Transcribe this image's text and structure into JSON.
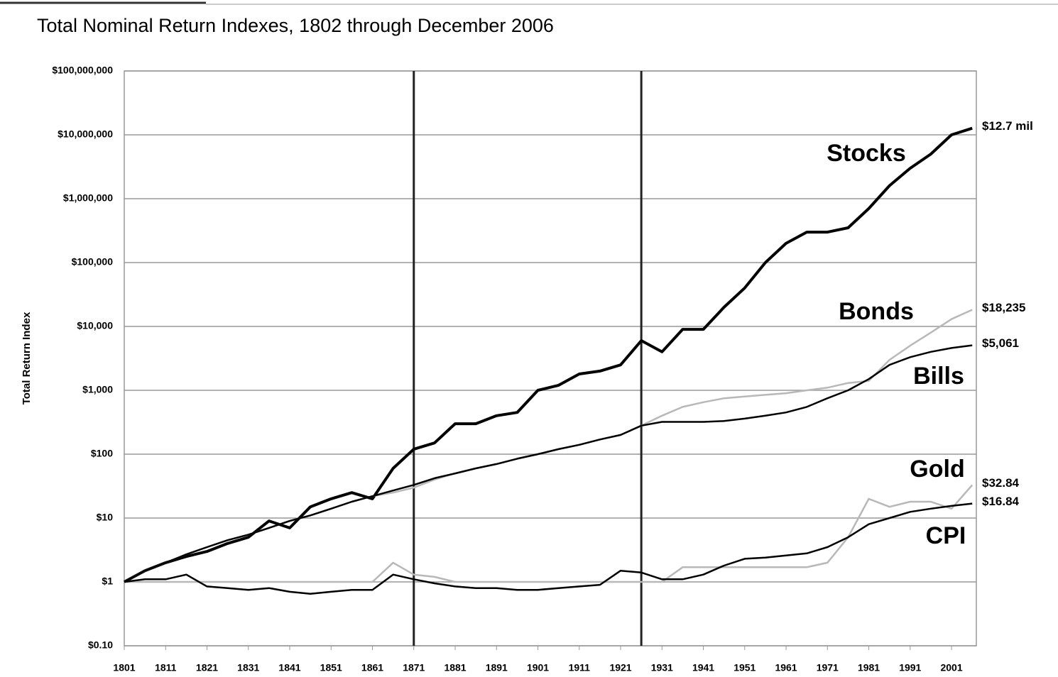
{
  "chart_data": {
    "type": "line",
    "title": "Total Nominal Return Indexes, 1802 through December 2006",
    "ylabel": "Total Return Index",
    "log_y": true,
    "grid": true,
    "xlim": [
      1801,
      2007
    ],
    "ylim": [
      0.1,
      100000000
    ],
    "xticks": [
      1801,
      1811,
      1821,
      1831,
      1841,
      1851,
      1861,
      1871,
      1881,
      1891,
      1901,
      1911,
      1921,
      1931,
      1941,
      1951,
      1961,
      1971,
      1981,
      1991,
      2001
    ],
    "yticks": [
      {
        "value": 0.1,
        "label": "$0.10"
      },
      {
        "value": 1,
        "label": "$1"
      },
      {
        "value": 10,
        "label": "$10"
      },
      {
        "value": 100,
        "label": "$100"
      },
      {
        "value": 1000,
        "label": "$1,000"
      },
      {
        "value": 10000,
        "label": "$10,000"
      },
      {
        "value": 100000,
        "label": "$100,000"
      },
      {
        "value": 1000000,
        "label": "$1,000,000"
      },
      {
        "value": 10000000,
        "label": "$10,000,000"
      },
      {
        "value": 100000000,
        "label": "$100,000,000"
      }
    ],
    "vertical_lines": [
      1871,
      1926
    ],
    "x": [
      1801,
      1806,
      1811,
      1816,
      1821,
      1826,
      1831,
      1836,
      1841,
      1846,
      1851,
      1856,
      1861,
      1866,
      1871,
      1876,
      1881,
      1886,
      1891,
      1896,
      1901,
      1906,
      1911,
      1916,
      1921,
      1926,
      1931,
      1936,
      1941,
      1946,
      1951,
      1956,
      1961,
      1966,
      1971,
      1976,
      1981,
      1986,
      1991,
      1996,
      2001,
      2006
    ],
    "series": [
      {
        "name": "Stocks",
        "color": "#000000",
        "line_width": 4,
        "values": [
          1,
          1.5,
          2,
          2.5,
          3,
          4,
          5,
          9,
          7,
          15,
          20,
          25,
          20,
          60,
          120,
          150,
          300,
          300,
          400,
          450,
          1000,
          1200,
          1800,
          2000,
          2500,
          6000,
          4000,
          9000,
          9000,
          20000,
          40000,
          100000,
          200000,
          300000,
          300000,
          350000,
          700000,
          1600000,
          3000000,
          5000000,
          10000000,
          12700000
        ],
        "value_labels": [
          null,
          null,
          null,
          null,
          null,
          null,
          null,
          null,
          null,
          null,
          null,
          null,
          null,
          null,
          null,
          null,
          null,
          null,
          null,
          null,
          null,
          null,
          null,
          null,
          null,
          null,
          null,
          null,
          null,
          null,
          null,
          null,
          null,
          null,
          null,
          null,
          null,
          null,
          null,
          null,
          null,
          "$12.7 mil"
        ]
      },
      {
        "name": "Bonds",
        "color": "#b8b8b8",
        "line_width": 2.5,
        "values": [
          1,
          1.5,
          2,
          2.7,
          3.5,
          4.5,
          5.5,
          7,
          9,
          11,
          14,
          18,
          22,
          25,
          30,
          40,
          50,
          60,
          70,
          85,
          100,
          120,
          140,
          170,
          200,
          280,
          400,
          550,
          650,
          750,
          800,
          850,
          900,
          1000,
          1100,
          1300,
          1400,
          3000,
          5000,
          8000,
          13000,
          18235
        ],
        "value_labels": [
          null,
          null,
          null,
          null,
          null,
          null,
          null,
          null,
          null,
          null,
          null,
          null,
          null,
          null,
          null,
          null,
          null,
          null,
          null,
          null,
          null,
          null,
          null,
          null,
          null,
          null,
          null,
          null,
          null,
          null,
          null,
          null,
          null,
          null,
          null,
          null,
          null,
          null,
          null,
          null,
          null,
          "$18,235"
        ]
      },
      {
        "name": "Bills",
        "color": "#000000",
        "line_width": 2.5,
        "values": [
          1,
          1.5,
          2,
          2.7,
          3.5,
          4.5,
          5.5,
          7,
          9,
          11,
          14,
          18,
          22,
          27,
          33,
          42,
          50,
          60,
          70,
          85,
          100,
          120,
          140,
          170,
          200,
          280,
          320,
          320,
          320,
          330,
          360,
          400,
          450,
          550,
          750,
          1000,
          1500,
          2500,
          3300,
          4000,
          4600,
          5061
        ],
        "value_labels": [
          null,
          null,
          null,
          null,
          null,
          null,
          null,
          null,
          null,
          null,
          null,
          null,
          null,
          null,
          null,
          null,
          null,
          null,
          null,
          null,
          null,
          null,
          null,
          null,
          null,
          null,
          null,
          null,
          null,
          null,
          null,
          null,
          null,
          null,
          null,
          null,
          null,
          null,
          null,
          null,
          null,
          "$5,061"
        ]
      },
      {
        "name": "Gold",
        "color": "#b8b8b8",
        "line_width": 2.5,
        "values": [
          1,
          1,
          1,
          1,
          1,
          1,
          1,
          1,
          1,
          1,
          1,
          1,
          1,
          2,
          1.3,
          1.2,
          1,
          1,
          1,
          1,
          1,
          1,
          1,
          1,
          1,
          1,
          1,
          1.7,
          1.7,
          1.7,
          1.7,
          1.7,
          1.7,
          1.7,
          2,
          5,
          20,
          15,
          18,
          18,
          14,
          32.84
        ],
        "value_labels": [
          null,
          null,
          null,
          null,
          null,
          null,
          null,
          null,
          null,
          null,
          null,
          null,
          null,
          null,
          null,
          null,
          null,
          null,
          null,
          null,
          null,
          null,
          null,
          null,
          null,
          null,
          null,
          null,
          null,
          null,
          null,
          null,
          null,
          null,
          null,
          null,
          null,
          null,
          null,
          null,
          null,
          "$32.84"
        ]
      },
      {
        "name": "CPI",
        "color": "#000000",
        "line_width": 2.5,
        "values": [
          1,
          1.1,
          1.1,
          1.3,
          0.85,
          0.8,
          0.75,
          0.8,
          0.7,
          0.65,
          0.7,
          0.75,
          0.75,
          1.3,
          1.1,
          0.95,
          0.85,
          0.8,
          0.8,
          0.75,
          0.75,
          0.8,
          0.85,
          0.9,
          1.5,
          1.4,
          1.1,
          1.1,
          1.3,
          1.8,
          2.3,
          2.4,
          2.6,
          2.8,
          3.5,
          5,
          8,
          10,
          12.5,
          14,
          15.5,
          16.84
        ],
        "value_labels": [
          null,
          null,
          null,
          null,
          null,
          null,
          null,
          null,
          null,
          null,
          null,
          null,
          null,
          null,
          null,
          null,
          null,
          null,
          null,
          null,
          null,
          null,
          null,
          null,
          null,
          null,
          null,
          null,
          null,
          null,
          null,
          null,
          null,
          null,
          null,
          null,
          null,
          null,
          null,
          null,
          null,
          "$16.84"
        ]
      }
    ]
  }
}
